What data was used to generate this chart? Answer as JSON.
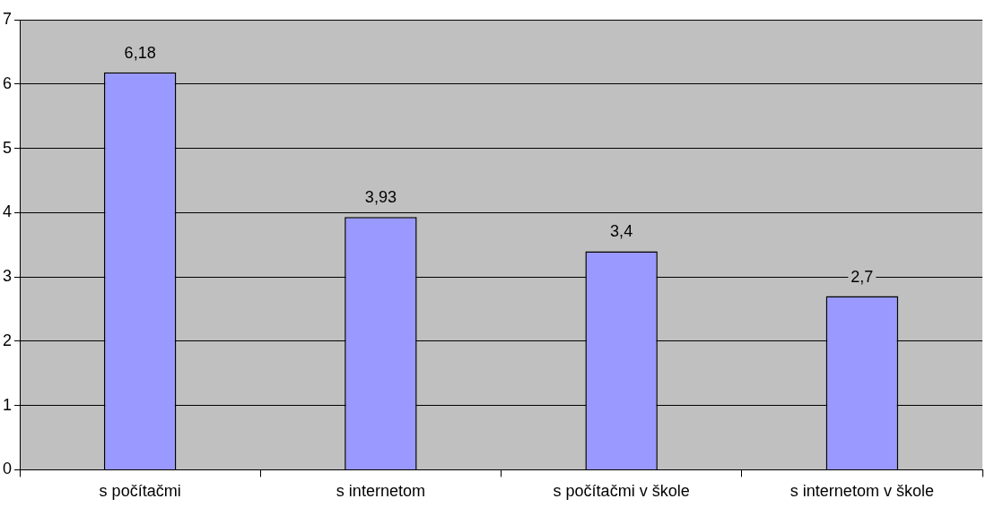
{
  "chart_data": {
    "type": "bar",
    "categories": [
      "s počítačmi",
      "s internetom",
      "s počítačmi v škole",
      "s internetom v škole"
    ],
    "values": [
      6.18,
      3.93,
      3.4,
      2.7
    ],
    "value_labels": [
      "6,18",
      "3,93",
      "3,4",
      "2,7"
    ],
    "color": "#9999ff",
    "ylim": [
      0,
      7
    ],
    "yticks": [
      0,
      1,
      2,
      3,
      4,
      5,
      6,
      7
    ],
    "grid": "y",
    "legend": false
  }
}
